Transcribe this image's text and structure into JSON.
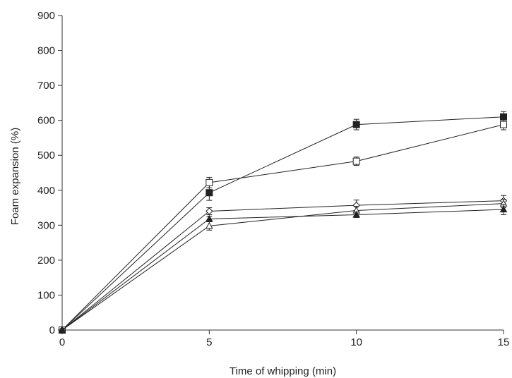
{
  "chart_data": {
    "type": "line",
    "title": "",
    "xlabel": "Time of whipping (min)",
    "ylabel": "Foam expansion  (%)",
    "x": [
      0,
      5,
      10,
      15
    ],
    "xlim": [
      0,
      15
    ],
    "ylim": [
      0,
      900
    ],
    "xticks": [
      "0",
      "5",
      "10",
      "15"
    ],
    "yticks": [
      "0",
      "100",
      "200",
      "300",
      "400",
      "500",
      "600",
      "700",
      "800",
      "900"
    ],
    "grid": false,
    "legend": "none",
    "series": [
      {
        "marker": "filled-square",
        "values": [
          0,
          393,
          588,
          610
        ],
        "errors": [
          0,
          22,
          15,
          15
        ]
      },
      {
        "marker": "open-square",
        "values": [
          0,
          422,
          483,
          588
        ],
        "errors": [
          0,
          15,
          12,
          15
        ]
      },
      {
        "marker": "open-diamond",
        "values": [
          0,
          340,
          357,
          370
        ],
        "errors": [
          0,
          10,
          15,
          15
        ]
      },
      {
        "marker": "open-triangle",
        "values": [
          0,
          298,
          342,
          362
        ],
        "errors": [
          0,
          12,
          12,
          12
        ]
      },
      {
        "marker": "filled-triangle",
        "values": [
          0,
          318,
          330,
          345
        ],
        "errors": [
          0,
          8,
          8,
          15
        ]
      }
    ],
    "colors": {
      "line": "#222222",
      "axis": "#333333"
    }
  }
}
